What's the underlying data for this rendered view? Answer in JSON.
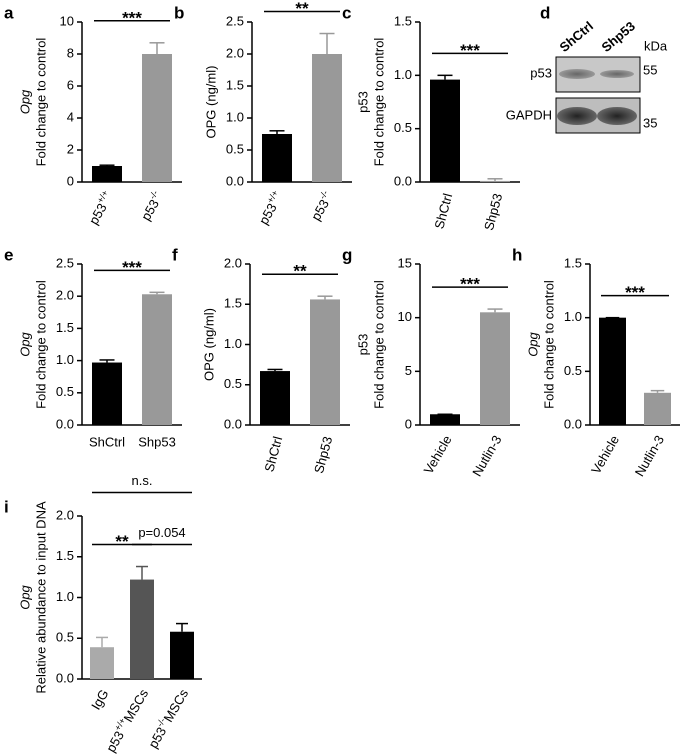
{
  "chart_data": [
    {
      "type": "bar",
      "label": "a",
      "ylabel": [
        "Opg",
        "Fold change to control"
      ],
      "ylabel_italic": true,
      "categories": [
        [
          "p53",
          "+/+"
        ],
        [
          "p53",
          "-/-"
        ]
      ],
      "values": [
        1.0,
        8.0
      ],
      "errors": [
        0.05,
        0.7
      ],
      "colors": [
        "#000000",
        "#999999"
      ],
      "ylim": [
        0,
        10
      ],
      "yticks": [
        0,
        2,
        4,
        6,
        8,
        10
      ],
      "annotations": [
        {
          "text": "***",
          "from": 0,
          "to": 1
        }
      ]
    },
    {
      "type": "bar",
      "label": "b",
      "ylabel": [
        "OPG (ng/ml)"
      ],
      "ylabel_italic": false,
      "categories": [
        [
          "p53",
          "+/+"
        ],
        [
          "p53",
          "-/-"
        ]
      ],
      "values": [
        0.75,
        2.0
      ],
      "errors": [
        0.05,
        0.32
      ],
      "colors": [
        "#000000",
        "#999999"
      ],
      "ylim": [
        0,
        2.5
      ],
      "yticks": [
        {
          "value": 0,
          "label": "0.0"
        },
        0.5,
        {
          "value": 1,
          "label": "1.0"
        },
        1.5,
        {
          "value": 2,
          "label": "2.0"
        },
        2.5
      ],
      "annotations": [
        {
          "text": "**",
          "from": 0,
          "to": 1
        }
      ]
    },
    {
      "type": "bar",
      "label": "c",
      "ylabel": [
        "p53",
        "Fold change to control"
      ],
      "ylabel_italic": false,
      "categories": [
        "ShCtrl",
        "Shp53"
      ],
      "values": [
        0.96,
        0.01
      ],
      "errors": [
        0.04,
        0.02
      ],
      "colors": [
        "#000000",
        "#999999"
      ],
      "ylim": [
        0,
        1.5
      ],
      "yticks": [
        {
          "value": 0,
          "label": "0.0"
        },
        0.5,
        {
          "value": 1,
          "label": "1.0"
        },
        1.5
      ],
      "annotations": [
        {
          "text": "***",
          "from": 0,
          "to": 1
        }
      ]
    },
    {
      "type": "bar",
      "label": "e",
      "ylabel": [
        "Opg",
        "Fold change to control"
      ],
      "ylabel_italic": true,
      "categories": [
        "ShCtrl",
        "Shp53"
      ],
      "values": [
        0.97,
        2.03
      ],
      "errors": [
        0.04,
        0.03
      ],
      "colors": [
        "#000000",
        "#999999"
      ],
      "ylim": [
        0,
        2.5
      ],
      "yticks": [
        {
          "value": 0,
          "label": "0.0"
        },
        0.5,
        {
          "value": 1,
          "label": "1.0"
        },
        1.5,
        {
          "value": 2,
          "label": "2.0"
        },
        2.5
      ],
      "annotations": [
        {
          "text": "***",
          "from": 0,
          "to": 1
        }
      ]
    },
    {
      "type": "bar",
      "label": "f",
      "ylabel": [
        "OPG (ng/ml)"
      ],
      "ylabel_italic": false,
      "categories": [
        "ShCtrl",
        "Shp53"
      ],
      "values": [
        0.67,
        1.56
      ],
      "errors": [
        0.02,
        0.04
      ],
      "colors": [
        "#000000",
        "#999999"
      ],
      "ylim": [
        0,
        2
      ],
      "yticks": [
        {
          "value": 0,
          "label": "0.0"
        },
        0.5,
        {
          "value": 1,
          "label": "1.0"
        },
        1.5,
        {
          "value": 2,
          "label": "2.0"
        }
      ],
      "annotations": [
        {
          "text": "**",
          "from": 0,
          "to": 1
        }
      ]
    },
    {
      "type": "bar",
      "label": "g",
      "ylabel": [
        "p53",
        "Fold change to control"
      ],
      "ylabel_italic": false,
      "categories": [
        "Vehicle",
        "Nutlin-3"
      ],
      "values": [
        1.0,
        10.5
      ],
      "errors": [
        0,
        0.3
      ],
      "colors": [
        "#000000",
        "#999999"
      ],
      "ylim": [
        0,
        15
      ],
      "yticks": [
        0,
        5,
        10,
        15
      ],
      "annotations": [
        {
          "text": "***",
          "from": 0,
          "to": 1
        }
      ]
    },
    {
      "type": "bar",
      "label": "h",
      "ylabel": [
        "Opg",
        "Fold change to control"
      ],
      "ylabel_italic": true,
      "categories": [
        "Vehicle",
        "Nutlin-3"
      ],
      "values": [
        1.0,
        0.3
      ],
      "errors": [
        0,
        0.02
      ],
      "colors": [
        "#000000",
        "#999999"
      ],
      "ylim": [
        0,
        1.5
      ],
      "yticks": [
        {
          "value": 0,
          "label": "0.0"
        },
        0.5,
        {
          "value": 1,
          "label": "1.0"
        },
        1.5
      ],
      "annotations": [
        {
          "text": "***",
          "from": 0,
          "to": 1
        }
      ]
    },
    {
      "type": "bar",
      "label": "i",
      "ylabel": [
        "Opg",
        "Relative abundance to input DNA"
      ],
      "ylabel_italic": true,
      "categories": [
        "IgG",
        [
          "p53",
          "+/+",
          "MSCs"
        ],
        [
          "p53",
          "-/-",
          "MSCs"
        ]
      ],
      "values": [
        0.39,
        1.22,
        0.58
      ],
      "errors": [
        0.12,
        0.16,
        0.1
      ],
      "colors": [
        "#aaaaaa",
        "#555555",
        "#000000"
      ],
      "ylim": [
        0,
        2
      ],
      "yticks": [
        {
          "value": 0,
          "label": "0.0"
        },
        0.5,
        {
          "value": 1,
          "label": "1.0"
        },
        1.5,
        {
          "value": 2,
          "label": "2.0"
        }
      ],
      "annotations": [
        {
          "text": "**",
          "from": 0,
          "to": 1
        },
        {
          "text": "p=0.054",
          "from": 1,
          "to": 2
        },
        {
          "text": "n.s.",
          "from": 0,
          "to": 2
        }
      ]
    }
  ],
  "blot": {
    "label": "d",
    "lanes": [
      "ShCtrl",
      "Shp53"
    ],
    "unit": "kDa",
    "rows": [
      {
        "name": "p53",
        "size": "55"
      },
      {
        "name": "GAPDH",
        "size": "35"
      }
    ]
  }
}
